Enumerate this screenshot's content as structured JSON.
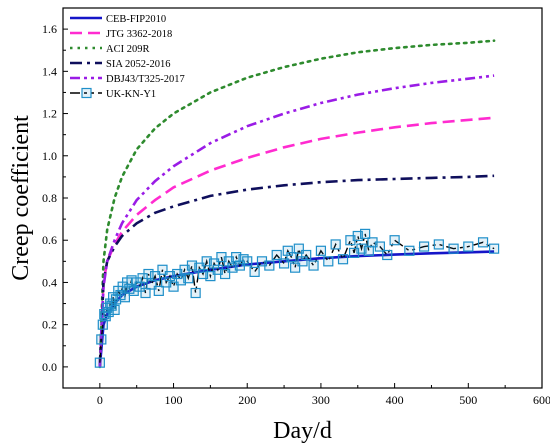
{
  "chart_data": {
    "type": "line",
    "title": "",
    "xlabel": "Day/d",
    "ylabel": "Creep coefficient",
    "xlim": [
      -50,
      600
    ],
    "ylim": [
      -0.1,
      1.7
    ],
    "xticks": [
      0,
      100,
      200,
      300,
      400,
      500,
      600
    ],
    "yticks": [
      0.0,
      0.2,
      0.4,
      0.6,
      0.8,
      1.0,
      1.2,
      1.4,
      1.6
    ],
    "xtick_labels": [
      "0",
      "100",
      "200",
      "300",
      "400",
      "500",
      "600"
    ],
    "ytick_labels": [
      "0.0",
      "0.2",
      "0.4",
      "0.6",
      "0.8",
      "1.0",
      "1.2",
      "1.4",
      "1.6"
    ],
    "legend_position": "top-left",
    "grid": false,
    "series": [
      {
        "name": "CEB-FIP2010",
        "color": "#1515c8",
        "dash": "solid",
        "x": [
          0,
          5,
          10,
          20,
          30,
          50,
          75,
          100,
          150,
          200,
          250,
          300,
          350,
          400,
          450,
          500,
          535
        ],
        "y": [
          0.0,
          0.2,
          0.25,
          0.3,
          0.34,
          0.38,
          0.41,
          0.43,
          0.46,
          0.485,
          0.5,
          0.515,
          0.525,
          0.532,
          0.538,
          0.543,
          0.546
        ]
      },
      {
        "name": "JTG 3362-2018",
        "color": "#ff2bd0",
        "dash": "dash",
        "x": [
          0,
          5,
          10,
          20,
          30,
          50,
          75,
          100,
          150,
          200,
          250,
          300,
          350,
          400,
          450,
          500,
          535
        ],
        "y": [
          0.0,
          0.4,
          0.5,
          0.58,
          0.64,
          0.72,
          0.79,
          0.85,
          0.93,
          0.99,
          1.04,
          1.08,
          1.11,
          1.135,
          1.155,
          1.17,
          1.18
        ]
      },
      {
        "name": "ACI 209R",
        "color": "#2e8b2e",
        "dash": "dot",
        "x": [
          0,
          5,
          10,
          20,
          30,
          50,
          75,
          100,
          150,
          200,
          250,
          300,
          350,
          400,
          450,
          500,
          535
        ],
        "y": [
          0.0,
          0.5,
          0.65,
          0.8,
          0.9,
          1.03,
          1.13,
          1.2,
          1.3,
          1.37,
          1.42,
          1.46,
          1.49,
          1.51,
          1.525,
          1.535,
          1.545
        ]
      },
      {
        "name": "SIA 2052-2016",
        "color": "#0f0f5c",
        "dash": "dashdot",
        "x": [
          0,
          5,
          10,
          20,
          30,
          50,
          75,
          100,
          150,
          200,
          250,
          300,
          350,
          400,
          450,
          500,
          535
        ],
        "y": [
          0.0,
          0.4,
          0.5,
          0.57,
          0.62,
          0.68,
          0.73,
          0.76,
          0.81,
          0.84,
          0.86,
          0.875,
          0.885,
          0.89,
          0.895,
          0.9,
          0.905
        ]
      },
      {
        "name": "DBJ43/T325-2017",
        "color": "#9a1ce6",
        "dash": "dashdotdot",
        "x": [
          0,
          5,
          10,
          20,
          30,
          50,
          75,
          100,
          150,
          200,
          250,
          300,
          350,
          400,
          450,
          500,
          535
        ],
        "y": [
          0.0,
          0.38,
          0.5,
          0.6,
          0.68,
          0.79,
          0.88,
          0.95,
          1.06,
          1.14,
          1.2,
          1.25,
          1.29,
          1.32,
          1.345,
          1.365,
          1.38
        ]
      },
      {
        "name": "UK-KN-Y1",
        "color": "#1f8fc9",
        "line_color": "#000000",
        "dash": "dashdotdot",
        "marker": "square",
        "x": [
          0,
          2,
          4,
          6,
          8,
          10,
          12,
          14,
          16,
          18,
          20,
          22,
          25,
          28,
          31,
          34,
          37,
          40,
          43,
          46,
          50,
          54,
          58,
          62,
          66,
          70,
          75,
          80,
          85,
          90,
          95,
          100,
          105,
          110,
          115,
          120,
          125,
          130,
          135,
          140,
          145,
          150,
          155,
          160,
          165,
          170,
          175,
          180,
          185,
          190,
          195,
          200,
          210,
          220,
          230,
          240,
          250,
          255,
          260,
          265,
          270,
          275,
          280,
          290,
          300,
          310,
          320,
          330,
          340,
          345,
          350,
          355,
          360,
          365,
          370,
          380,
          390,
          400,
          420,
          440,
          460,
          480,
          500,
          520,
          535
        ],
        "y": [
          0.02,
          0.13,
          0.2,
          0.25,
          0.24,
          0.28,
          0.26,
          0.3,
          0.29,
          0.33,
          0.27,
          0.32,
          0.36,
          0.34,
          0.38,
          0.33,
          0.4,
          0.37,
          0.41,
          0.36,
          0.4,
          0.38,
          0.42,
          0.35,
          0.44,
          0.39,
          0.43,
          0.36,
          0.46,
          0.4,
          0.43,
          0.38,
          0.44,
          0.41,
          0.46,
          0.42,
          0.48,
          0.35,
          0.47,
          0.44,
          0.5,
          0.43,
          0.49,
          0.46,
          0.52,
          0.44,
          0.5,
          0.47,
          0.52,
          0.48,
          0.51,
          0.5,
          0.45,
          0.5,
          0.48,
          0.53,
          0.49,
          0.55,
          0.52,
          0.47,
          0.56,
          0.5,
          0.53,
          0.48,
          0.55,
          0.5,
          0.58,
          0.51,
          0.6,
          0.54,
          0.62,
          0.56,
          0.63,
          0.55,
          0.59,
          0.57,
          0.53,
          0.6,
          0.55,
          0.57,
          0.58,
          0.56,
          0.57,
          0.59,
          0.56
        ]
      }
    ]
  }
}
